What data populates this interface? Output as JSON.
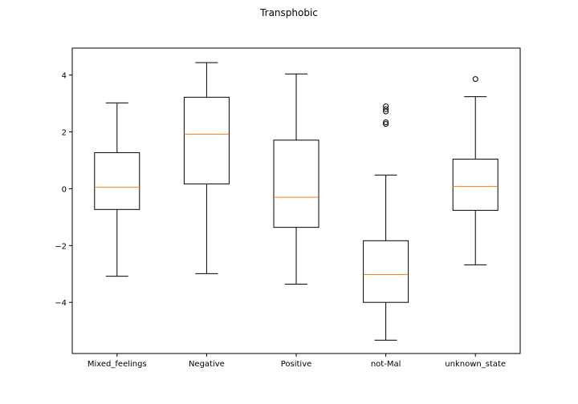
{
  "chart_data": {
    "type": "box",
    "title": "Transphobic",
    "xlabel": "",
    "ylabel": "",
    "ylim": [
      -5.8,
      4.95
    ],
    "yticks": [
      -4,
      -2,
      0,
      2,
      4
    ],
    "categories": [
      "Mixed_feelings",
      "Negative",
      "Positive",
      "not-Mal",
      "unknown_state"
    ],
    "boxes": [
      {
        "category": "Mixed_feelings",
        "whisker_low": -3.08,
        "q1": -0.73,
        "median": 0.05,
        "q3": 1.27,
        "whisker_high": 3.02,
        "outliers": []
      },
      {
        "category": "Negative",
        "whisker_low": -2.99,
        "q1": 0.17,
        "median": 1.92,
        "q3": 3.22,
        "whisker_high": 4.44,
        "outliers": []
      },
      {
        "category": "Positive",
        "whisker_low": -3.36,
        "q1": -1.36,
        "median": -0.3,
        "q3": 1.71,
        "whisker_high": 4.04,
        "outliers": []
      },
      {
        "category": "not-Mal",
        "whisker_low": -5.33,
        "q1": -4.0,
        "median": -3.02,
        "q3": -1.83,
        "whisker_high": 0.48,
        "outliers": [
          2.28,
          2.34,
          2.72,
          2.8,
          2.9
        ]
      },
      {
        "category": "unknown_state",
        "whisker_low": -2.68,
        "q1": -0.76,
        "median": 0.08,
        "q3": 1.04,
        "whisker_high": 3.24,
        "outliers": [
          3.86
        ]
      }
    ],
    "colors": {
      "box": "#000000",
      "median": "#ff7f0e",
      "background": "#ffffff"
    },
    "grid": false,
    "legend": "none"
  }
}
